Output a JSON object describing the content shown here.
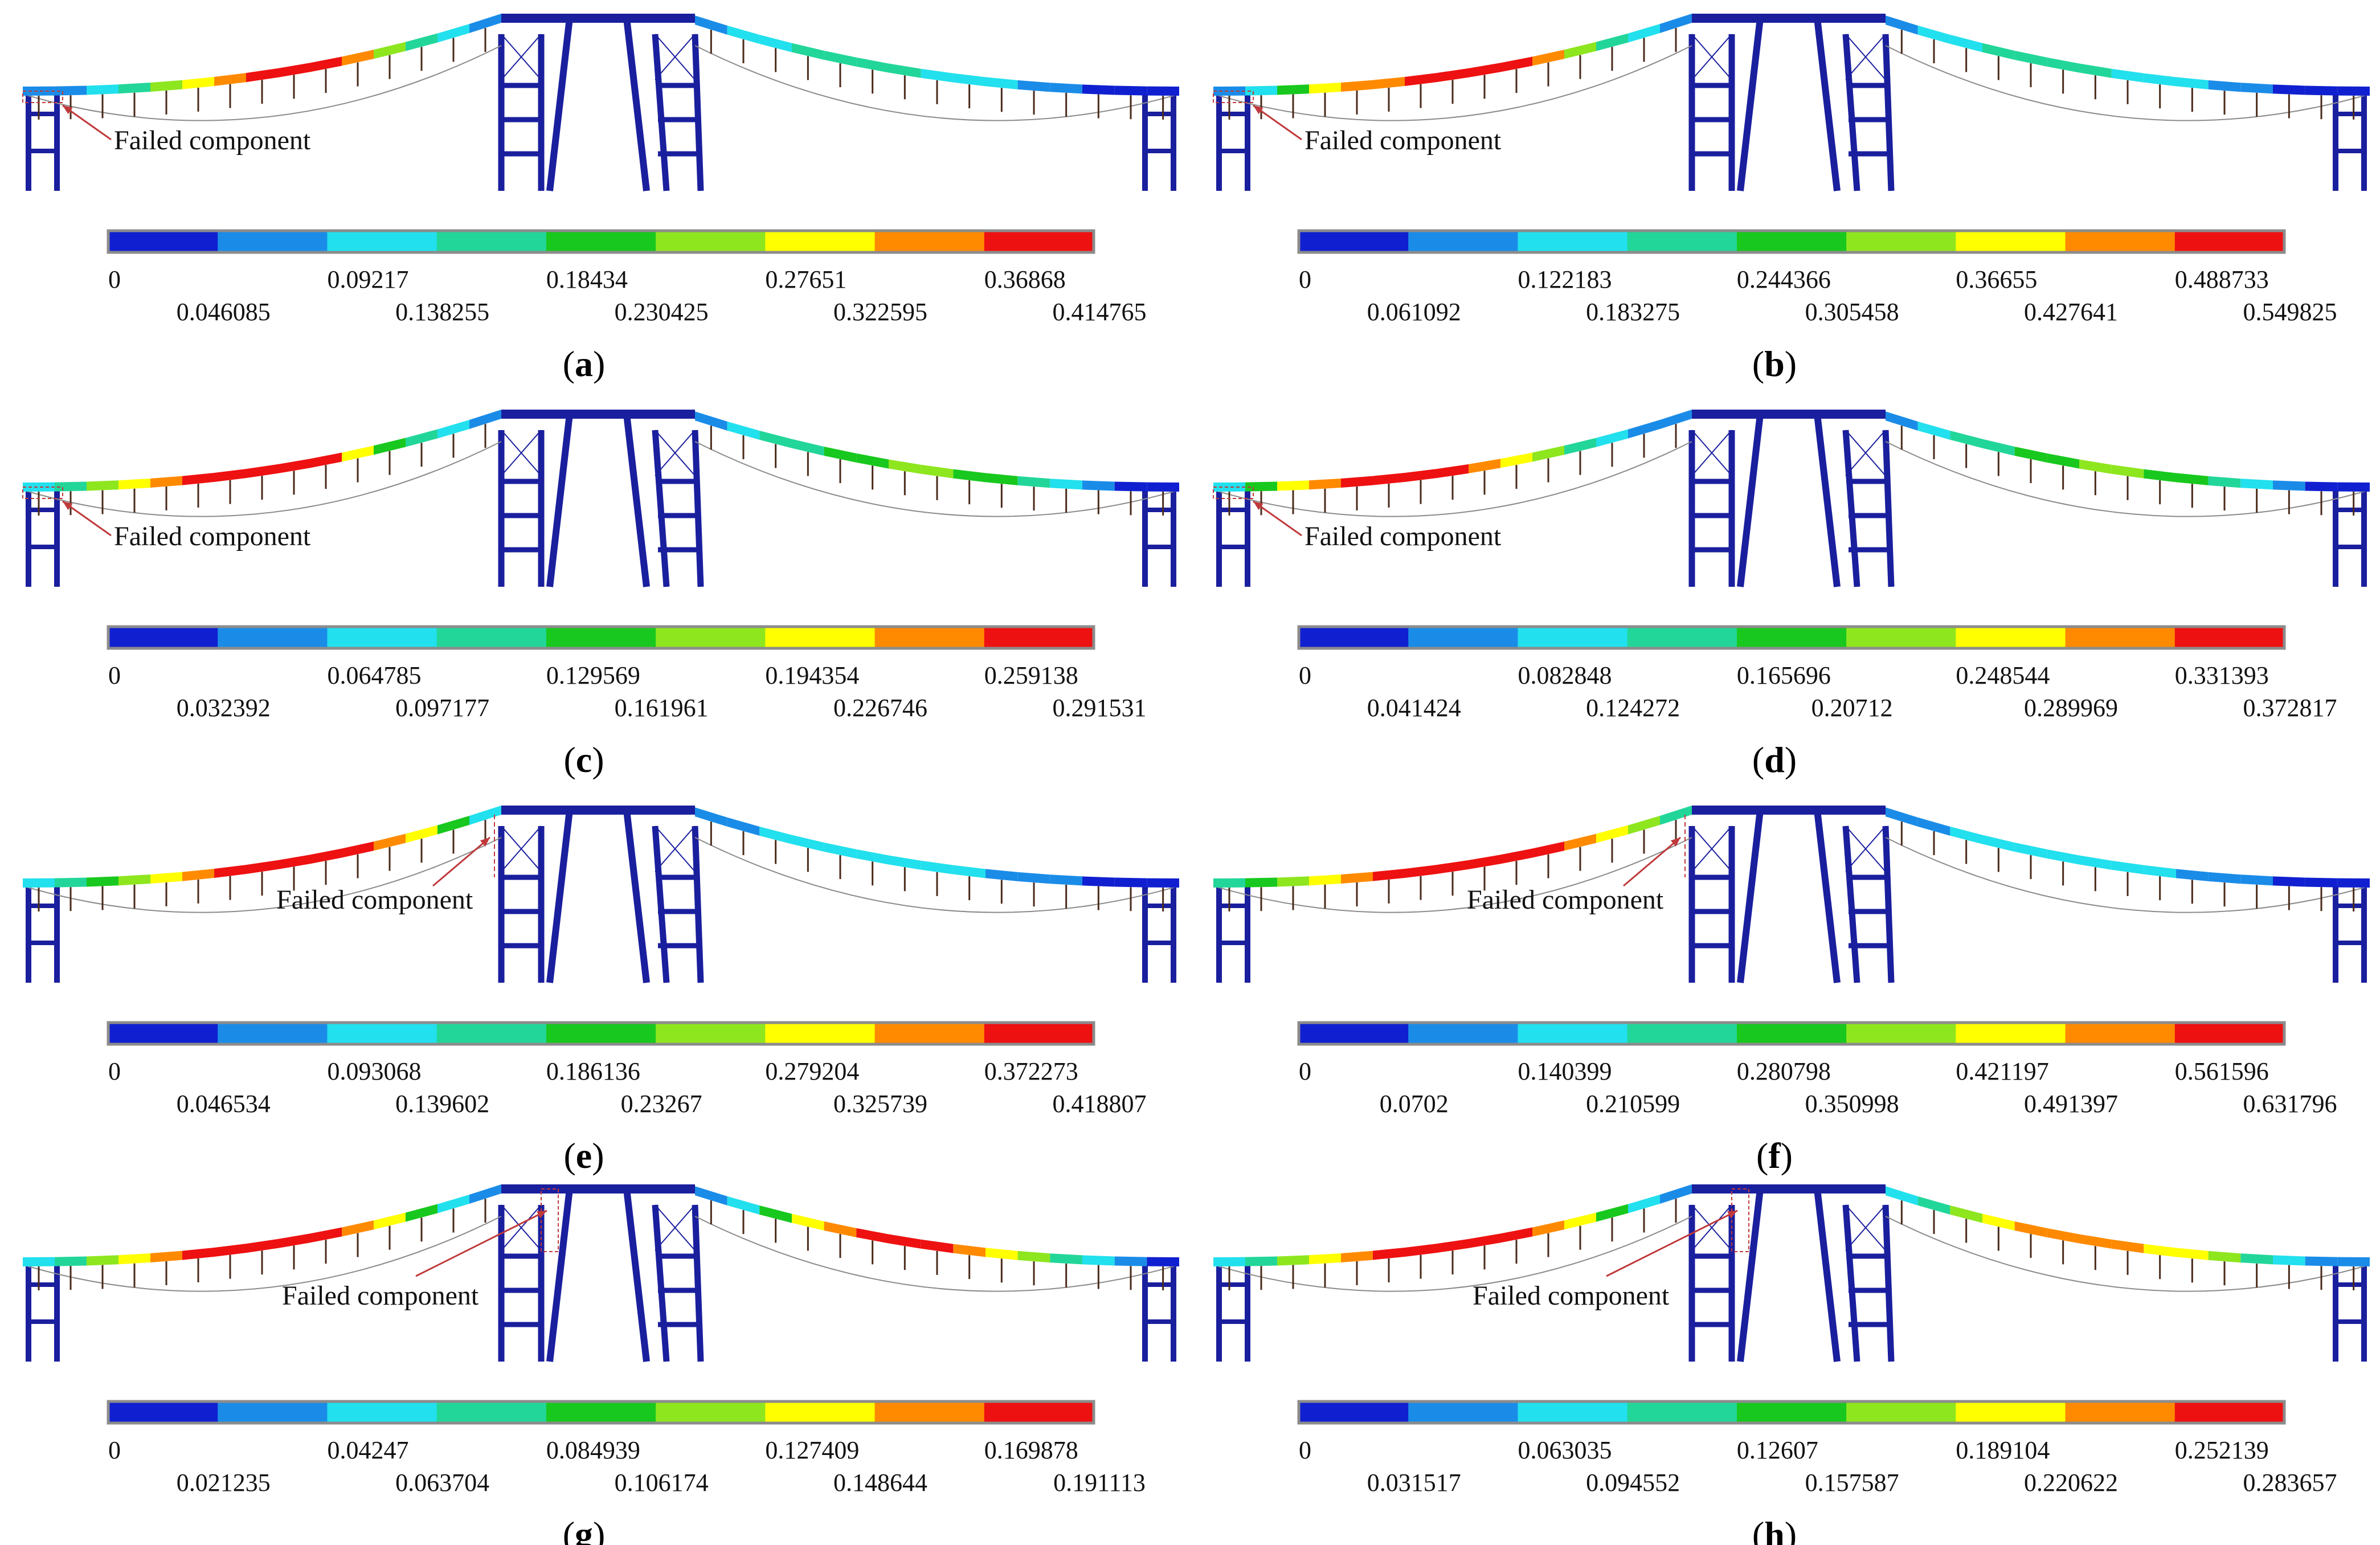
{
  "figure": {
    "annotation_text": "Failed component",
    "colormap": [
      "#1020d0",
      "#1a8ce8",
      "#22e0ee",
      "#22d69a",
      "#18c81e",
      "#8ee61e",
      "#ffff00",
      "#ff8a00",
      "#ee1111"
    ],
    "bar_border_color": "#8c8c8c",
    "structure_color": "#1a1f9e",
    "arrow_color": "#c0393b",
    "panels": [
      {
        "id": "a",
        "label": "a",
        "ticks_top": [
          "0",
          "0.09217",
          "0.18434",
          "0.27651",
          "0.36868"
        ],
        "ticks_bottom": [
          "0.046085",
          "0.138255",
          "0.230425",
          "0.322595",
          "0.414765"
        ],
        "failed_location": "left-end",
        "left_span_colors": [
          1,
          1,
          2,
          3,
          5,
          6,
          7,
          8,
          8,
          8,
          7,
          5,
          3,
          2,
          1
        ],
        "right_span_colors": [
          1,
          2,
          2,
          3,
          3,
          3,
          3,
          2,
          2,
          2,
          1,
          1,
          0,
          0,
          0
        ]
      },
      {
        "id": "b",
        "label": "b",
        "ticks_top": [
          "0",
          "0.122183",
          "0.244366",
          "0.36655",
          "0.488733"
        ],
        "ticks_bottom": [
          "0.061092",
          "0.183275",
          "0.305458",
          "0.427641",
          "0.549825"
        ],
        "failed_location": "left-end",
        "left_span_colors": [
          1,
          2,
          4,
          6,
          7,
          7,
          8,
          8,
          8,
          8,
          7,
          5,
          3,
          2,
          1
        ],
        "right_span_colors": [
          1,
          2,
          2,
          3,
          3,
          3,
          3,
          2,
          2,
          2,
          1,
          1,
          0,
          0,
          0
        ]
      },
      {
        "id": "c",
        "label": "c",
        "ticks_top": [
          "0",
          "0.064785",
          "0.129569",
          "0.194354",
          "0.259138"
        ],
        "ticks_bottom": [
          "0.032392",
          "0.097177",
          "0.161961",
          "0.226746",
          "0.291531"
        ],
        "failed_location": "left-end",
        "left_span_colors": [
          2,
          3,
          5,
          6,
          7,
          8,
          8,
          8,
          8,
          8,
          6,
          4,
          3,
          2,
          1
        ],
        "right_span_colors": [
          1,
          2,
          3,
          3,
          4,
          4,
          5,
          5,
          4,
          4,
          3,
          2,
          1,
          0,
          0
        ]
      },
      {
        "id": "d",
        "label": "d",
        "ticks_top": [
          "0",
          "0.082848",
          "0.165696",
          "0.248544",
          "0.331393"
        ],
        "ticks_bottom": [
          "0.041424",
          "0.124272",
          "0.20712",
          "0.289969",
          "0.372817"
        ],
        "failed_location": "left-end",
        "left_span_colors": [
          2,
          4,
          6,
          7,
          8,
          8,
          8,
          8,
          7,
          6,
          5,
          3,
          2,
          1,
          1
        ],
        "right_span_colors": [
          1,
          2,
          3,
          3,
          4,
          4,
          5,
          5,
          4,
          4,
          3,
          2,
          1,
          0,
          0
        ]
      },
      {
        "id": "e",
        "label": "e",
        "ticks_top": [
          "0",
          "0.093068",
          "0.186136",
          "0.279204",
          "0.372273"
        ],
        "ticks_bottom": [
          "0.046534",
          "0.139602",
          "0.23267",
          "0.325739",
          "0.418807"
        ],
        "failed_location": "near-left-tower",
        "left_span_colors": [
          2,
          3,
          4,
          5,
          6,
          7,
          8,
          8,
          8,
          8,
          8,
          7,
          6,
          4,
          2
        ],
        "right_span_colors": [
          1,
          1,
          2,
          2,
          2,
          2,
          2,
          2,
          2,
          1,
          1,
          1,
          0,
          0,
          0
        ]
      },
      {
        "id": "f",
        "label": "f",
        "ticks_top": [
          "0",
          "0.140399",
          "0.280798",
          "0.421197",
          "0.561596"
        ],
        "ticks_bottom": [
          "0.0702",
          "0.210599",
          "0.350998",
          "0.491397",
          "0.631796"
        ],
        "failed_location": "near-left-tower",
        "left_span_colors": [
          3,
          4,
          5,
          6,
          7,
          8,
          8,
          8,
          8,
          8,
          8,
          7,
          6,
          5,
          3
        ],
        "right_span_colors": [
          1,
          1,
          2,
          2,
          2,
          2,
          2,
          2,
          2,
          1,
          1,
          1,
          0,
          0,
          0
        ]
      },
      {
        "id": "g",
        "label": "g",
        "ticks_top": [
          "0",
          "0.04247",
          "0.084939",
          "0.127409",
          "0.169878"
        ],
        "ticks_bottom": [
          "0.021235",
          "0.063704",
          "0.106174",
          "0.148644",
          "0.191113"
        ],
        "failed_location": "tower-center",
        "left_span_colors": [
          2,
          3,
          5,
          6,
          7,
          8,
          8,
          8,
          8,
          8,
          7,
          6,
          4,
          2,
          1
        ],
        "right_span_colors": [
          1,
          2,
          4,
          6,
          7,
          8,
          8,
          8,
          7,
          6,
          5,
          3,
          2,
          1,
          0
        ]
      },
      {
        "id": "h",
        "label": "h",
        "ticks_top": [
          "0",
          "0.063035",
          "0.12607",
          "0.189104",
          "0.252139"
        ],
        "ticks_bottom": [
          "0.031517",
          "0.094552",
          "0.157587",
          "0.220622",
          "0.283657"
        ],
        "failed_location": "tower-center",
        "left_span_colors": [
          2,
          3,
          5,
          6,
          7,
          8,
          8,
          8,
          8,
          8,
          7,
          6,
          4,
          2,
          1
        ],
        "right_span_colors": [
          2,
          3,
          5,
          6,
          7,
          7,
          7,
          7,
          6,
          6,
          5,
          3,
          2,
          1,
          1
        ]
      }
    ]
  }
}
